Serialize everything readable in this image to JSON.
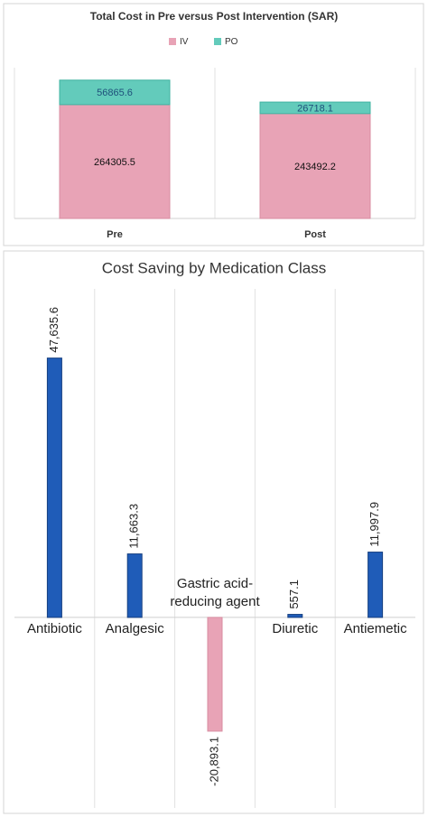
{
  "chart_data": [
    {
      "type": "stacked-bar",
      "title": "Total Cost in Pre versus Post Intervention (SAR)",
      "categories": [
        "Pre",
        "Post"
      ],
      "series": [
        {
          "name": "IV",
          "color": "#e8a3b6",
          "values": [
            264305.5,
            243492.2
          ]
        },
        {
          "name": "PO",
          "color": "#63cbbb",
          "values": [
            56865.6,
            26718.1
          ]
        }
      ],
      "ylim": [
        0,
        350000
      ],
      "legend": "top"
    },
    {
      "type": "bar",
      "title": "Cost Saving by Medication Class",
      "categories": [
        "Antibiotic",
        "Analgesic",
        "Gastric acid-reducing agent",
        "Diuretic",
        "Antiemetic"
      ],
      "values": [
        47635.6,
        11663.3,
        -20893.1,
        557.1,
        11997.9
      ],
      "value_labels": [
        "47,635.6",
        "11,663.3",
        "-20,893.1",
        "557.1",
        "11,997.9"
      ],
      "colors": [
        "#1f5cb8",
        "#1f5cb8",
        "#e8a3b6",
        "#1f5cb8",
        "#1f5cb8"
      ],
      "ylim": [
        -35000,
        62000
      ]
    }
  ]
}
